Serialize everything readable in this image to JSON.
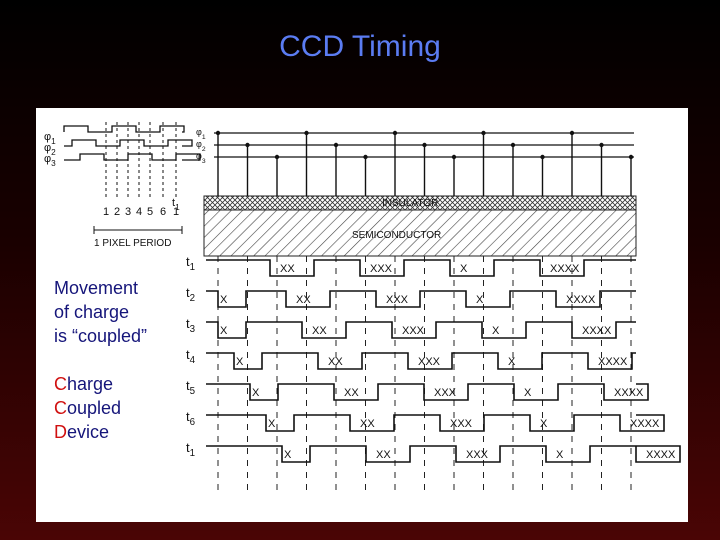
{
  "title": "CCD Timing",
  "caption": [
    "Movement",
    "of charge",
    "is “coupled”"
  ],
  "acronym": [
    {
      "initial": "C",
      "rest": "harge"
    },
    {
      "initial": "C",
      "rest": "oupled"
    },
    {
      "initial": "D",
      "rest": "evice"
    }
  ],
  "diagram": {
    "clock_phases": [
      {
        "symbol": "φ",
        "sub": "1"
      },
      {
        "symbol": "φ",
        "sub": "2"
      },
      {
        "symbol": "φ",
        "sub": "3"
      }
    ],
    "clock_times": [
      "1",
      "2",
      "3",
      "4",
      "5",
      "6",
      "1"
    ],
    "clock_end": {
      "symbol": "t",
      "sub": "1"
    },
    "pixel_period": "1 PIXEL PERIOD",
    "electrode_phases": [
      {
        "symbol": "φ",
        "sub": "1"
      },
      {
        "symbol": "φ",
        "sub": "2"
      },
      {
        "symbol": "φ",
        "sub": "3"
      }
    ],
    "insulator": "INSULATOR",
    "semiconductor": "SEMICONDUCTOR",
    "rows": [
      {
        "time": {
          "symbol": "t",
          "sub": "1"
        },
        "wells": [
          "XX",
          "XXX",
          "X",
          "XXXX"
        ]
      },
      {
        "time": {
          "symbol": "t",
          "sub": "2"
        },
        "wells": [
          "X",
          "XX",
          "XXX",
          "X",
          "XXXX"
        ]
      },
      {
        "time": {
          "symbol": "t",
          "sub": "3"
        },
        "wells": [
          "X",
          "XX",
          "XXX",
          "X",
          "XXXX"
        ]
      },
      {
        "time": {
          "symbol": "t",
          "sub": "4"
        },
        "wells": [
          "X",
          "XX",
          "XXX",
          "X",
          "XXXX"
        ]
      },
      {
        "time": {
          "symbol": "t",
          "sub": "5"
        },
        "wells": [
          "X",
          "XX",
          "XXX",
          "X",
          "XXXX"
        ]
      },
      {
        "time": {
          "symbol": "t",
          "sub": "6"
        },
        "wells": [
          "X",
          "XX",
          "XXX",
          "X",
          "XXXX"
        ]
      },
      {
        "time": {
          "symbol": "t",
          "sub": "1"
        },
        "wells": [
          "X",
          "XX",
          "XXX",
          "X",
          "XXXX"
        ]
      }
    ]
  }
}
